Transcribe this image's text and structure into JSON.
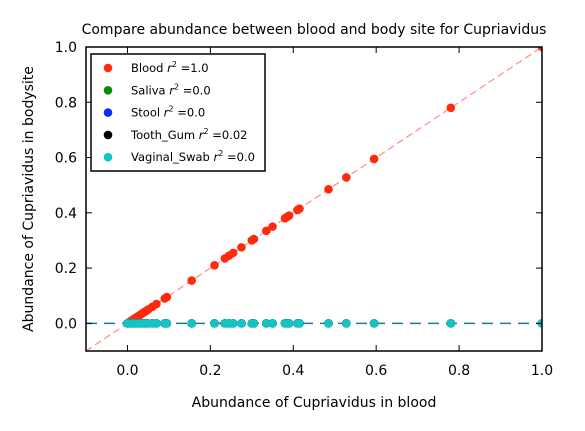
{
  "chart_data": {
    "type": "scatter",
    "title": "Compare abundance between blood and body site for Cupriavidus",
    "xlabel": "Abundance of Cupriavidus in blood",
    "ylabel": "Abundance of Cupriavidus in bodysite",
    "xlim": [
      -0.1,
      1.0
    ],
    "ylim": [
      -0.1,
      1.0
    ],
    "xticks": [
      "0.0",
      "0.2",
      "0.4",
      "0.6",
      "0.8",
      "1.0"
    ],
    "yticks": [
      "0.0",
      "0.2",
      "0.4",
      "0.6",
      "0.8",
      "1.0"
    ],
    "grid": false,
    "legend_position": "top-left",
    "x_values": [
      0.0,
      0.005,
      0.01,
      0.015,
      0.02,
      0.025,
      0.03,
      0.035,
      0.04,
      0.045,
      0.05,
      0.06,
      0.07,
      0.09,
      0.095,
      0.155,
      0.21,
      0.235,
      0.245,
      0.255,
      0.275,
      0.3,
      0.305,
      0.335,
      0.35,
      0.38,
      0.385,
      0.39,
      0.41,
      0.415,
      0.485,
      0.528,
      0.595,
      0.78,
      1.0
    ],
    "reference_line": {
      "label": "y = x",
      "color": "#ff8c80",
      "style": "dashed"
    },
    "fit_lines": [
      {
        "series": "Blood",
        "slope": 1.0,
        "intercept": 0.0,
        "color": "#ff8c80"
      },
      {
        "series": "Vaginal_Swab",
        "slope": 0.0,
        "intercept": 0.0,
        "color": "#1a7a9a"
      }
    ],
    "series": [
      {
        "name": "Blood",
        "legend_label": "Blood",
        "r2": "1.0",
        "color": "#ff2a0d",
        "y_rule": "equals_x"
      },
      {
        "name": "Saliva",
        "legend_label": "Saliva",
        "r2": "0.0",
        "color": "#0a8a0a",
        "y_rule": "zero"
      },
      {
        "name": "Stool",
        "legend_label": "Stool",
        "r2": "0.0",
        "color": "#0a2ef5",
        "y_rule": "zero"
      },
      {
        "name": "Tooth_Gum",
        "legend_label": "Tooth_Gum",
        "r2": "0.02",
        "color": "#000000",
        "y_rule": "zero"
      },
      {
        "name": "Vaginal_Swab",
        "legend_label": "Vaginal_Swab",
        "r2": "0.0",
        "color": "#12c4c4",
        "y_rule": "zero"
      }
    ]
  }
}
